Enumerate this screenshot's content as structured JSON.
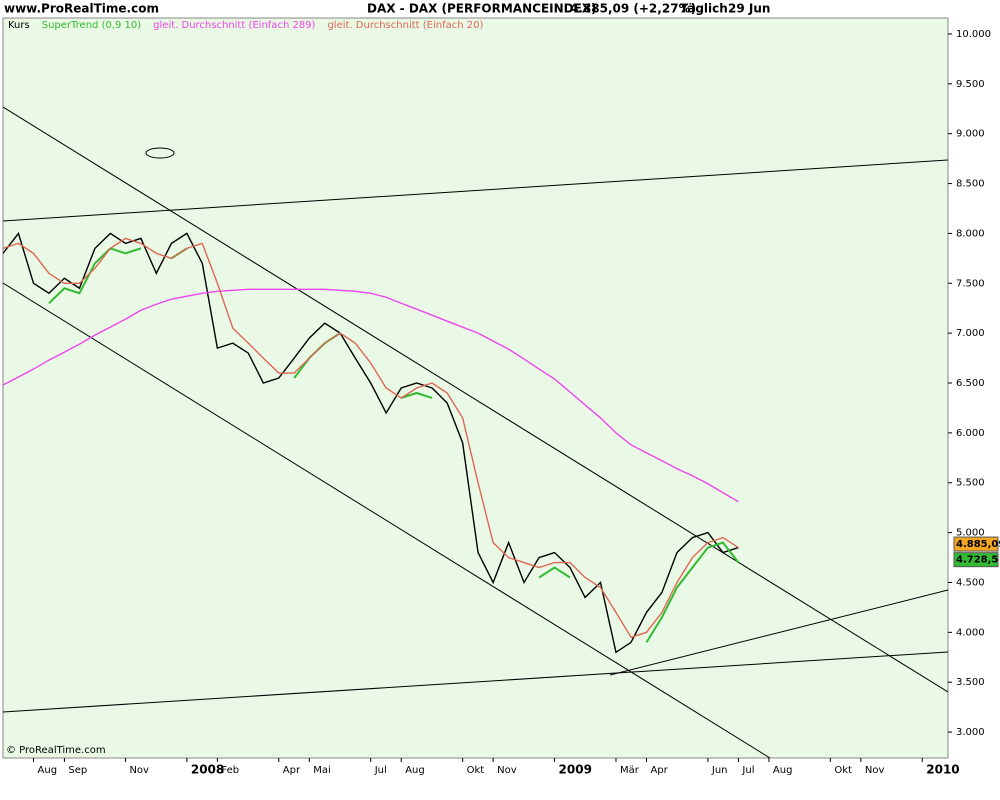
{
  "header": {
    "site": "www.ProRealTime.com",
    "instrument": "DAX - DAX (PERFORMANCEINDEX)",
    "quote": "4.885,09 (+2,27%)",
    "period": "Täglich",
    "date": "29 Jun"
  },
  "footer": "© ProRealTime.com",
  "chart_data": {
    "type": "line",
    "x": [
      2007.5,
      2007.542,
      2007.583,
      2007.625,
      2007.667,
      2007.708,
      2007.75,
      2007.792,
      2007.833,
      2007.875,
      2007.917,
      2007.958,
      2008.0,
      2008.042,
      2008.083,
      2008.125,
      2008.167,
      2008.208,
      2008.25,
      2008.292,
      2008.333,
      2008.375,
      2008.417,
      2008.458,
      2008.5,
      2008.542,
      2008.583,
      2008.625,
      2008.667,
      2008.708,
      2008.75,
      2008.792,
      2008.833,
      2008.875,
      2008.917,
      2008.958,
      2009.0,
      2009.042,
      2009.083,
      2009.125,
      2009.167,
      2009.208,
      2009.25,
      2009.292,
      2009.333,
      2009.375,
      2009.417,
      2009.458,
      2009.5
    ],
    "series": [
      {
        "name": "Kurs",
        "color": "#000000",
        "values": [
          7800,
          8000,
          7500,
          7400,
          7550,
          7450,
          7850,
          8000,
          7900,
          7950,
          7600,
          7900,
          8000,
          7700,
          6850,
          6900,
          6800,
          6500,
          6550,
          6750,
          6950,
          7100,
          7000,
          6750,
          6500,
          6200,
          6450,
          6500,
          6450,
          6300,
          5900,
          4800,
          4500,
          4900,
          4500,
          4750,
          4800,
          4650,
          4350,
          4500,
          3800,
          3900,
          4200,
          4400,
          4800,
          4950,
          5000,
          4800,
          4850
        ]
      },
      {
        "name": "SuperTrend (0,9 10)",
        "color": "#33bb33",
        "values": [
          null,
          null,
          null,
          7300,
          7450,
          7400,
          7700,
          7850,
          7800,
          7850,
          null,
          7750,
          7850,
          null,
          null,
          null,
          null,
          null,
          null,
          6550,
          6750,
          6900,
          7000,
          null,
          null,
          null,
          6350,
          6400,
          6350,
          null,
          null,
          null,
          null,
          null,
          null,
          4550,
          4650,
          4550,
          null,
          null,
          null,
          null,
          3900,
          4150,
          4450,
          4650,
          4850,
          4900,
          4700
        ]
      },
      {
        "name": "gleit. Durchschnitt (Einfach 289)",
        "color": "#ee44ee",
        "values": [
          6480,
          6560,
          6640,
          6730,
          6810,
          6890,
          6980,
          7060,
          7140,
          7230,
          7290,
          7340,
          7370,
          7400,
          7420,
          7430,
          7440,
          7440,
          7440,
          7440,
          7440,
          7440,
          7430,
          7420,
          7400,
          7360,
          7300,
          7240,
          7180,
          7120,
          7060,
          7000,
          6920,
          6840,
          6740,
          6640,
          6540,
          6410,
          6280,
          6150,
          6000,
          5880,
          5800,
          5720,
          5640,
          5570,
          5490,
          5400,
          5310
        ]
      },
      {
        "name": "gleit. Durchschnitt (Einfach 20)",
        "color": "#dd6655",
        "values": [
          7850,
          7900,
          7800,
          7600,
          7500,
          7500,
          7650,
          7850,
          7950,
          7900,
          7800,
          7750,
          7850,
          7900,
          7500,
          7050,
          6900,
          6750,
          6600,
          6600,
          6750,
          6900,
          7000,
          6900,
          6700,
          6450,
          6350,
          6450,
          6500,
          6400,
          6150,
          5500,
          4900,
          4750,
          4700,
          4650,
          4700,
          4700,
          4550,
          4450,
          4200,
          3950,
          4000,
          4200,
          4500,
          4750,
          4900,
          4950,
          4850
        ]
      }
    ],
    "xlim": [
      2007.5,
      2010.07
    ],
    "xticks": [
      {
        "value": 2007.583,
        "label": "Aug"
      },
      {
        "value": 2007.667,
        "label": "Sep"
      },
      {
        "value": 2007.833,
        "label": "Nov"
      },
      2008,
      {
        "value": 2008.083,
        "label": "Feb"
      },
      {
        "value": 2008.25,
        "label": "Apr"
      },
      {
        "value": 2008.333,
        "label": "Mai"
      },
      {
        "value": 2008.5,
        "label": "Jul"
      },
      {
        "value": 2008.583,
        "label": "Aug"
      },
      {
        "value": 2008.75,
        "label": "Okt"
      },
      {
        "value": 2008.833,
        "label": "Nov"
      },
      2009,
      {
        "value": 2009.167,
        "label": "Mär"
      },
      {
        "value": 2009.25,
        "label": "Apr"
      },
      {
        "value": 2009.417,
        "label": "Jun"
      },
      {
        "value": 2009.5,
        "label": "Jul"
      },
      {
        "value": 2009.583,
        "label": "Aug"
      },
      {
        "value": 2009.75,
        "label": "Okt"
      },
      {
        "value": 2009.833,
        "label": "Nov"
      },
      2010
    ],
    "ylim": [
      2740,
      10160
    ],
    "yticks": [
      {
        "value": 3000,
        "label": "3.000"
      },
      {
        "value": 3500,
        "label": "3.500"
      },
      {
        "value": 4000,
        "label": "4.000"
      },
      {
        "value": 4500,
        "label": "4.500"
      },
      {
        "value": 5000,
        "label": "5.000"
      },
      {
        "value": 5500,
        "label": "5.500"
      },
      {
        "value": 6000,
        "label": "6.000"
      },
      {
        "value": 6500,
        "label": "6.500"
      },
      {
        "value": 7000,
        "label": "7.000"
      },
      {
        "value": 7500,
        "label": "7.500"
      },
      {
        "value": 8000,
        "label": "8.000"
      },
      {
        "value": 8500,
        "label": "8.500"
      },
      {
        "value": 9000,
        "label": "9.000"
      },
      {
        "value": 9500,
        "label": "9.500"
      },
      {
        "value": 10000,
        "label": "10.000"
      }
    ],
    "markers": [
      {
        "value": 4885.09,
        "label": "4.885,09",
        "color": "#f5a623"
      },
      {
        "value": 4728.5,
        "label": "4.728,5",
        "color": "#33bb33"
      }
    ]
  }
}
